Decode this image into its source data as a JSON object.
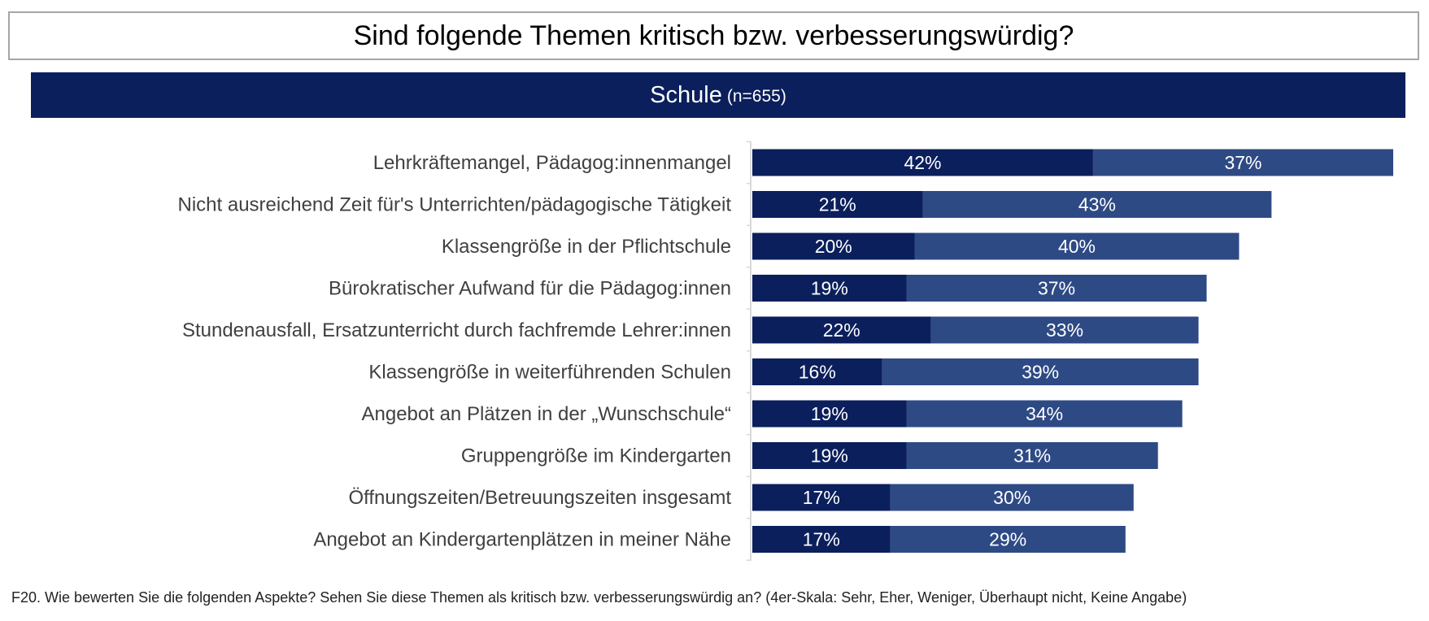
{
  "title": "Sind folgende Themen kritisch bzw. verbesserungswürdig?",
  "subtitle": {
    "label": "Schule",
    "n": "(n=655)"
  },
  "colors": {
    "band": "#0b1f5c",
    "sehr": "#0b1f5c",
    "eher": "#2e4a85",
    "label_text": "#404040",
    "axis": "#d9d9d9"
  },
  "chart_data": {
    "type": "bar",
    "orientation": "horizontal",
    "stacked": true,
    "categories": [
      "Lehrkräftemangel, Pädagog:innenmangel",
      "Nicht ausreichend Zeit für's Unterrichten/pädagogische Tätigkeit",
      "Klassengröße in der Pflichtschule",
      "Bürokratischer Aufwand für die Pädagog:innen",
      "Stundenausfall, Ersatzunterricht durch fachfremde Lehrer:innen",
      "Klassengröße in weiterführenden Schulen",
      "Angebot an Plätzen in der „Wunschschule“",
      "Gruppengröße im Kindergarten",
      "Öffnungszeiten/Betreuungszeiten insgesamt",
      "Angebot an Kindergartenplätzen in meiner Nähe"
    ],
    "series": [
      {
        "values": [
          42,
          21,
          20,
          19,
          22,
          16,
          19,
          19,
          17,
          17
        ],
        "labels": [
          "42%",
          "21%",
          "20%",
          "19%",
          "22%",
          "16%",
          "19%",
          "19%",
          "17%",
          "17%"
        ]
      },
      {
        "values": [
          37,
          43,
          40,
          37,
          33,
          39,
          34,
          31,
          30,
          29
        ],
        "labels": [
          "37%",
          "43%",
          "40%",
          "37%",
          "33%",
          "39%",
          "34%",
          "31%",
          "30%",
          "29%"
        ]
      }
    ],
    "xlim": [
      0,
      79
    ],
    "legend": "none"
  },
  "footnote": "F20. Wie bewerten Sie die folgenden Aspekte? Sehen Sie diese Themen als kritisch bzw. verbesserungswürdig an? (4er-Skala: Sehr, Eher, Weniger, Überhaupt nicht, Keine Angabe)"
}
